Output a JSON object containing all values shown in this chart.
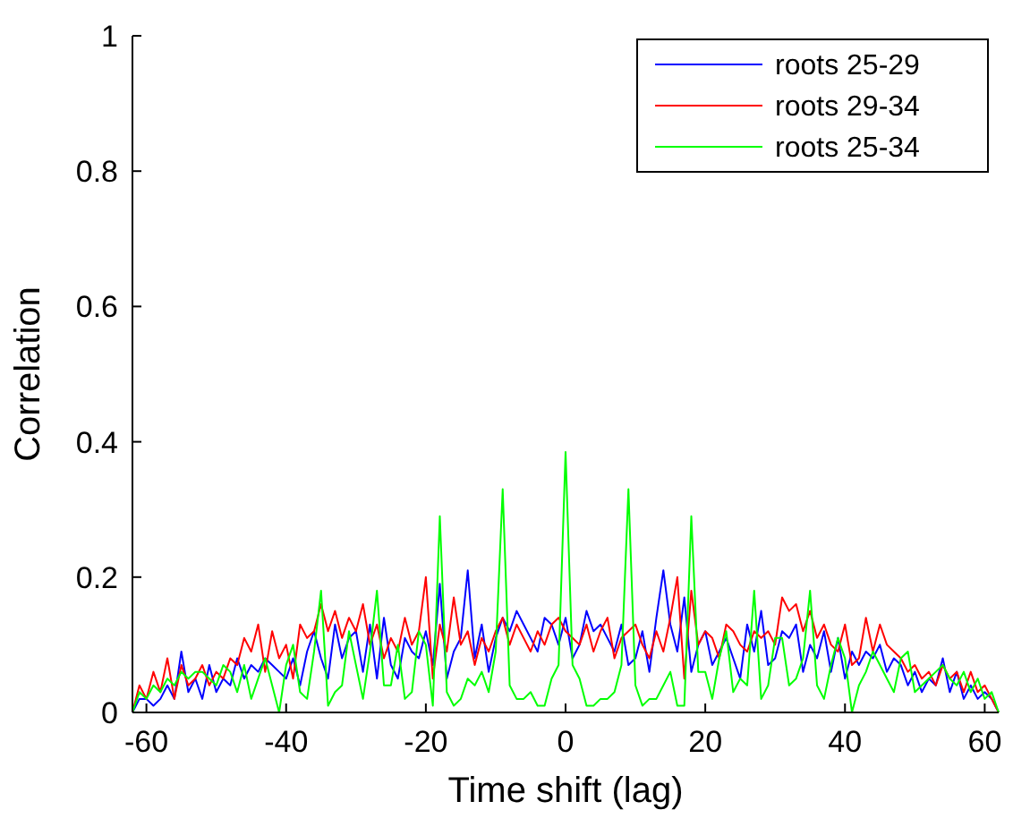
{
  "chart_data": {
    "type": "line",
    "xlabel": "Time shift (lag)",
    "ylabel": "Correlation",
    "x": [
      -62,
      -61,
      -60,
      -59,
      -58,
      -57,
      -56,
      -55,
      -54,
      -53,
      -52,
      -51,
      -50,
      -49,
      -48,
      -47,
      -46,
      -45,
      -44,
      -43,
      -42,
      -41,
      -40,
      -39,
      -38,
      -37,
      -36,
      -35,
      -34,
      -33,
      -32,
      -31,
      -30,
      -29,
      -28,
      -27,
      -26,
      -25,
      -24,
      -23,
      -22,
      -21,
      -20,
      -19,
      -18,
      -17,
      -16,
      -15,
      -14,
      -13,
      -12,
      -11,
      -10,
      -9,
      -8,
      -7,
      -6,
      -5,
      -4,
      -3,
      -2,
      -1,
      0,
      1,
      2,
      3,
      4,
      5,
      6,
      7,
      8,
      9,
      10,
      11,
      12,
      13,
      14,
      15,
      16,
      17,
      18,
      19,
      20,
      21,
      22,
      23,
      24,
      25,
      26,
      27,
      28,
      29,
      30,
      31,
      32,
      33,
      34,
      35,
      36,
      37,
      38,
      39,
      40,
      41,
      42,
      43,
      44,
      45,
      46,
      47,
      48,
      49,
      50,
      51,
      52,
      53,
      54,
      55,
      56,
      57,
      58,
      59,
      60,
      61,
      62
    ],
    "series": [
      {
        "name": "roots 25-29",
        "color": "#0000ff",
        "values": [
          0,
          0.02,
          0.02,
          0.01,
          0.02,
          0.04,
          0.02,
          0.09,
          0.03,
          0.05,
          0.02,
          0.07,
          0.03,
          0.05,
          0.04,
          0.08,
          0.05,
          0.07,
          0.06,
          0.08,
          0.07,
          0.06,
          0.05,
          0.08,
          0.04,
          0.09,
          0.12,
          0.08,
          0.05,
          0.13,
          0.08,
          0.11,
          0.12,
          0.06,
          0.13,
          0.05,
          0.14,
          0.07,
          0.05,
          0.11,
          0.09,
          0.08,
          0.12,
          0.07,
          0.19,
          0.05,
          0.09,
          0.11,
          0.21,
          0.08,
          0.13,
          0.06,
          0.11,
          0.14,
          0.12,
          0.15,
          0.13,
          0.11,
          0.09,
          0.14,
          0.13,
          0.1,
          0.14,
          0.08,
          0.1,
          0.15,
          0.12,
          0.13,
          0.11,
          0.09,
          0.13,
          0.07,
          0.08,
          0.12,
          0.06,
          0.14,
          0.21,
          0.13,
          0.09,
          0.17,
          0.06,
          0.1,
          0.12,
          0.07,
          0.09,
          0.11,
          0.08,
          0.05,
          0.13,
          0.09,
          0.15,
          0.07,
          0.08,
          0.12,
          0.11,
          0.13,
          0.06,
          0.1,
          0.08,
          0.12,
          0.06,
          0.11,
          0.05,
          0.09,
          0.07,
          0.09,
          0.08,
          0.1,
          0.06,
          0.08,
          0.07,
          0.04,
          0.06,
          0.03,
          0.05,
          0.04,
          0.08,
          0.03,
          0.06,
          0.02,
          0.04,
          0.02,
          0.03,
          0.02,
          0
        ]
      },
      {
        "name": "roots 29-34",
        "color": "#ff0000",
        "values": [
          0,
          0.04,
          0.02,
          0.06,
          0.03,
          0.08,
          0.02,
          0.07,
          0.04,
          0.05,
          0.07,
          0.04,
          0.06,
          0.05,
          0.08,
          0.07,
          0.11,
          0.09,
          0.13,
          0.06,
          0.12,
          0.08,
          0.1,
          0.05,
          0.13,
          0.11,
          0.12,
          0.16,
          0.12,
          0.15,
          0.11,
          0.14,
          0.12,
          0.16,
          0.1,
          0.13,
          0.08,
          0.11,
          0.09,
          0.14,
          0.1,
          0.12,
          0.2,
          0.05,
          0.13,
          0.09,
          0.17,
          0.1,
          0.12,
          0.07,
          0.11,
          0.09,
          0.12,
          0.14,
          0.1,
          0.13,
          0.11,
          0.09,
          0.12,
          0.1,
          0.13,
          0.14,
          0.12,
          0.11,
          0.1,
          0.13,
          0.09,
          0.12,
          0.14,
          0.08,
          0.11,
          0.12,
          0.13,
          0.1,
          0.08,
          0.12,
          0.09,
          0.14,
          0.2,
          0.05,
          0.18,
          0.1,
          0.12,
          0.11,
          0.08,
          0.13,
          0.12,
          0.1,
          0.09,
          0.12,
          0.11,
          0.12,
          0.1,
          0.17,
          0.15,
          0.16,
          0.12,
          0.15,
          0.11,
          0.13,
          0.1,
          0.09,
          0.13,
          0.07,
          0.08,
          0.14,
          0.09,
          0.13,
          0.1,
          0.09,
          0.08,
          0.06,
          0.07,
          0.05,
          0.06,
          0.04,
          0.07,
          0.05,
          0.06,
          0.03,
          0.06,
          0.03,
          0.04,
          0.02,
          0
        ]
      },
      {
        "name": "roots 25-34",
        "color": "#00ff00",
        "values": [
          0,
          0.03,
          0.02,
          0.04,
          0.03,
          0.05,
          0.04,
          0.06,
          0.05,
          0.06,
          0.06,
          0.05,
          0.04,
          0.07,
          0.06,
          0.03,
          0.07,
          0.02,
          0.05,
          0.08,
          0.04,
          0,
          0.07,
          0.1,
          0.03,
          0.02,
          0.09,
          0.18,
          0.01,
          0.03,
          0.04,
          0.12,
          0.07,
          0.02,
          0.09,
          0.18,
          0.04,
          0.04,
          0.1,
          0.02,
          0.03,
          0.12,
          0.1,
          0.01,
          0.29,
          0.03,
          0.01,
          0.02,
          0.05,
          0.04,
          0.06,
          0.03,
          0.09,
          0.33,
          0.04,
          0.02,
          0.02,
          0.03,
          0.01,
          0.01,
          0.05,
          0.07,
          0.385,
          0.07,
          0.05,
          0.01,
          0.01,
          0.02,
          0.02,
          0.03,
          0.07,
          0.33,
          0.04,
          0.01,
          0.02,
          0.02,
          0.04,
          0.06,
          0.01,
          0.01,
          0.29,
          0.06,
          0.06,
          0.02,
          0.08,
          0.12,
          0.03,
          0.05,
          0.04,
          0.18,
          0.02,
          0.04,
          0.11,
          0.11,
          0.04,
          0.05,
          0.08,
          0.18,
          0.04,
          0.02,
          0.07,
          0.11,
          0.08,
          0,
          0.04,
          0.06,
          0.09,
          0.07,
          0.05,
          0.03,
          0.08,
          0.09,
          0.03,
          0.04,
          0.05,
          0.06,
          0.07,
          0.05,
          0.04,
          0.06,
          0.03,
          0.05,
          0.02,
          0.03,
          0
        ]
      }
    ],
    "xlim": [
      -62,
      62
    ],
    "xticks": [
      -60,
      -40,
      -20,
      0,
      20,
      40,
      60
    ],
    "ylim": [
      0,
      1
    ],
    "yticks": [
      0,
      0.2,
      0.4,
      0.6,
      0.8,
      1
    ],
    "grid": false,
    "legend": "top right",
    "marker": "none",
    "line_style": "solid"
  }
}
